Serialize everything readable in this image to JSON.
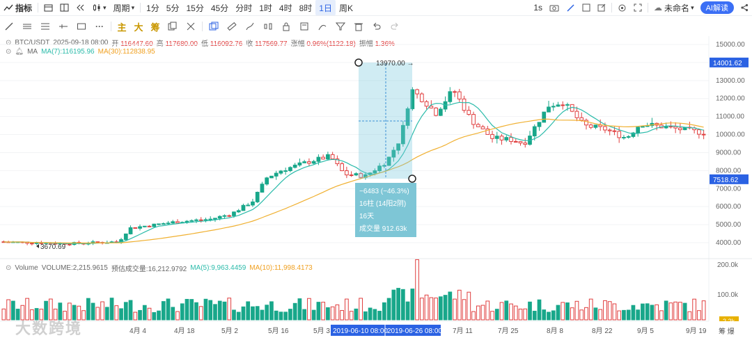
{
  "toolbar": {
    "indicators": "指标",
    "period": "周期",
    "intervals": [
      "1分",
      "5分",
      "15分",
      "45分",
      "分时",
      "1时",
      "4时",
      "8时",
      "1日",
      "周K"
    ],
    "active_interval": "1日",
    "speed": "1s",
    "file_name": "未命名",
    "ai_button": "AI解读"
  },
  "drawbar": {
    "text_tools": [
      "主",
      "大",
      "筹"
    ]
  },
  "ohlc": {
    "pair": "BTC/USDT",
    "datetime": "2025-09-18 08:00",
    "open_label": "开",
    "open": "116447.60",
    "high_label": "高",
    "high": "117680.00",
    "low_label": "低",
    "low": "116092.76",
    "close_label": "收",
    "close": "117569.77",
    "change_label": "涨幅",
    "change": "0.96%(1122.18)",
    "amp_label": "振幅",
    "amp": "1.36%"
  },
  "ma": {
    "name": "MA",
    "ma7": "MA(7):116195.96",
    "ma30": "MA(30):112838.95"
  },
  "price_axis": {
    "ticks": [
      "15000.00",
      "14000.00",
      "13000.00",
      "12000.00",
      "11000.00",
      "10000.00",
      "9000.00",
      "8000.00",
      "7000.00",
      "6000.00",
      "5000.00",
      "4000.00"
    ],
    "highlight_top": "14001.62",
    "highlight_bottom": "7518.62"
  },
  "measure": {
    "top_label": "13970.00 →",
    "change": "−6483 (−46.3%)",
    "bars": "16柱 (14阳2阴)",
    "days": "16天",
    "volume": "成交量 912.63k"
  },
  "low_label": "3670.69",
  "volume": {
    "title": "Volume",
    "value": "VOLUME:2,215.9615",
    "estimate": "预估成交量:16,212.9792",
    "ma5": "MA(5):9,963.4459",
    "ma10": "MA(10):11,998.4173",
    "axis": [
      "200.0k",
      "100.0k"
    ],
    "current": "2.2k"
  },
  "time_axis": {
    "labels": [
      "4月 4",
      "4月 18",
      "5月 2",
      "5月 16",
      "5月 3",
      "7月 11",
      "7月 25",
      "8月 8",
      "8月 22",
      "9月 5",
      "9月 19"
    ],
    "range_start": "2019-06-10 08:00",
    "range_end": "2019-06-26 08:00",
    "right_text": "筹 爆"
  },
  "watermark": "大数跨境",
  "colors": {
    "up": "#18a78a",
    "down": "#e03e3e",
    "ma7": "#2bbbaa",
    "ma30": "#f0b030",
    "accent": "#2b62e3"
  }
}
